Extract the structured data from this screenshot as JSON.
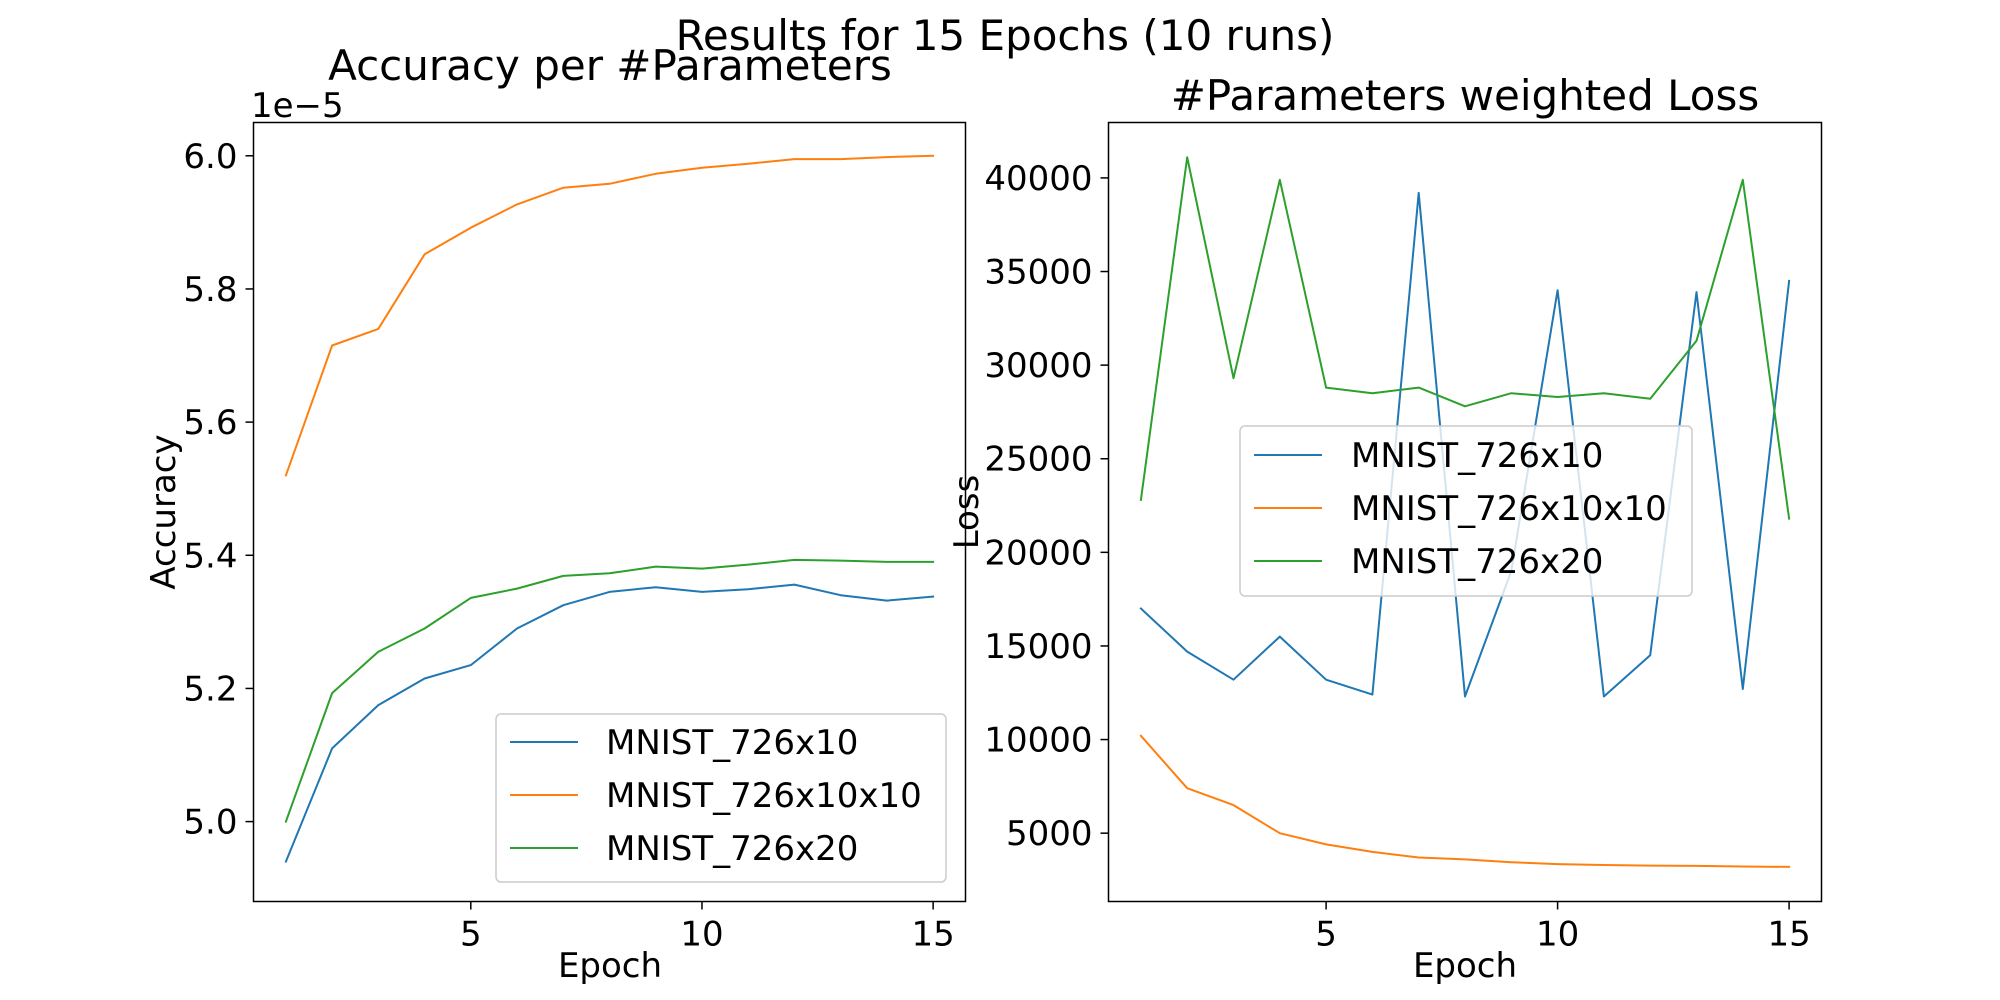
{
  "figure": {
    "suptitle": "Results for 15 Epochs (10 runs)"
  },
  "chart_data": [
    {
      "type": "line",
      "title": "Accuracy per #Parameters",
      "xlabel": "Epoch",
      "ylabel": "Accuracy",
      "offset_text": "1e−5",
      "x": [
        1,
        2,
        3,
        4,
        5,
        6,
        7,
        8,
        9,
        10,
        11,
        12,
        13,
        14,
        15
      ],
      "xlim": [
        0.3,
        15.7
      ],
      "ylim": [
        4.88,
        6.05
      ],
      "xticks": [
        5,
        10,
        15
      ],
      "xtick_labels": [
        "5",
        "10",
        "15"
      ],
      "yticks": [
        5.0,
        5.2,
        5.4,
        5.6,
        5.8,
        6.0
      ],
      "ytick_labels": [
        "5.0",
        "5.2",
        "5.4",
        "5.6",
        "5.8",
        "6.0"
      ],
      "grid": false,
      "legend_position": "lower right",
      "series": [
        {
          "name": "MNIST_726x10",
          "color": "#1f77b4",
          "values": [
            4.94,
            5.11,
            5.175,
            5.215,
            5.235,
            5.29,
            5.325,
            5.345,
            5.352,
            5.345,
            5.349,
            5.356,
            5.34,
            5.332,
            5.338
          ]
        },
        {
          "name": "MNIST_726x10x10",
          "color": "#ff7f0e",
          "values": [
            5.52,
            5.715,
            5.74,
            5.852,
            5.892,
            5.927,
            5.952,
            5.958,
            5.973,
            5.982,
            5.988,
            5.995,
            5.995,
            5.998,
            6.0
          ]
        },
        {
          "name": "MNIST_726x20",
          "color": "#2ca02c",
          "values": [
            5.0,
            5.193,
            5.255,
            5.29,
            5.336,
            5.35,
            5.369,
            5.373,
            5.383,
            5.38,
            5.386,
            5.393,
            5.392,
            5.39,
            5.39
          ]
        }
      ]
    },
    {
      "type": "line",
      "title": "#Parameters weighted Loss",
      "xlabel": "Epoch",
      "ylabel": "Loss",
      "x": [
        1,
        2,
        3,
        4,
        5,
        6,
        7,
        8,
        9,
        10,
        11,
        12,
        13,
        14,
        15
      ],
      "xlim": [
        0.3,
        15.7
      ],
      "ylim": [
        1350,
        42960
      ],
      "xticks": [
        5,
        10,
        15
      ],
      "xtick_labels": [
        "5",
        "10",
        "15"
      ],
      "yticks": [
        5000,
        10000,
        15000,
        20000,
        25000,
        30000,
        35000,
        40000
      ],
      "ytick_labels": [
        "5000",
        "10000",
        "15000",
        "20000",
        "25000",
        "30000",
        "35000",
        "40000"
      ],
      "grid": false,
      "legend_position": "center right",
      "series": [
        {
          "name": "MNIST_726x10",
          "color": "#1f77b4",
          "values": [
            17000,
            14700,
            13200,
            15500,
            13200,
            12400,
            39200,
            12300,
            19000,
            34000,
            12300,
            14500,
            33900,
            12700,
            34500
          ]
        },
        {
          "name": "MNIST_726x10x10",
          "color": "#ff7f0e",
          "values": [
            10200,
            7400,
            6500,
            5000,
            4400,
            4000,
            3700,
            3600,
            3450,
            3350,
            3300,
            3270,
            3250,
            3220,
            3200
          ]
        },
        {
          "name": "MNIST_726x20",
          "color": "#2ca02c",
          "values": [
            22800,
            41100,
            29300,
            39900,
            28800,
            28500,
            28800,
            27800,
            28500,
            28300,
            28500,
            28200,
            31300,
            39900,
            21800
          ]
        }
      ]
    }
  ]
}
